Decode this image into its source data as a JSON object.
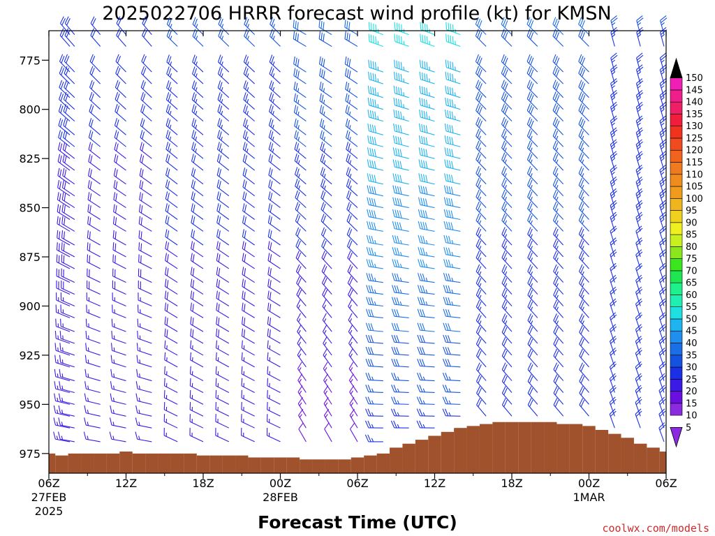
{
  "chart_data": {
    "type": "wind-barb-profile",
    "title": "2025022706 HRRR forecast wind profile (kt) for KMSN",
    "xlabel": "Forecast Time (UTC)",
    "credit": "coolwx.com/models",
    "ylim": [
      760,
      985
    ],
    "y_axis_reversed": true,
    "y_ticks": [
      775,
      800,
      825,
      850,
      875,
      900,
      925,
      950,
      975
    ],
    "x_range_hours": [
      0,
      48
    ],
    "x_ticks": [
      {
        "hour": 0,
        "label": "06Z",
        "date": "27FEB",
        "year": "2025"
      },
      {
        "hour": 6,
        "label": "12Z",
        "date": "",
        "year": ""
      },
      {
        "hour": 12,
        "label": "18Z",
        "date": "",
        "year": ""
      },
      {
        "hour": 18,
        "label": "00Z",
        "date": "28FEB",
        "year": ""
      },
      {
        "hour": 24,
        "label": "06Z",
        "date": "",
        "year": ""
      },
      {
        "hour": 30,
        "label": "12Z",
        "date": "",
        "year": ""
      },
      {
        "hour": 36,
        "label": "18Z",
        "date": "",
        "year": ""
      },
      {
        "hour": 42,
        "label": "00Z",
        "date": "1MAR",
        "year": ""
      },
      {
        "hour": 48,
        "label": "06Z",
        "date": "",
        "year": ""
      }
    ],
    "colorbar": {
      "levels": [
        5,
        10,
        15,
        20,
        25,
        30,
        35,
        40,
        45,
        50,
        55,
        60,
        65,
        70,
        75,
        80,
        85,
        90,
        95,
        100,
        105,
        110,
        115,
        120,
        125,
        130,
        135,
        140,
        145,
        150
      ],
      "colors": [
        "#8a2be2",
        "#6a0fe0",
        "#3b1ae6",
        "#1a30e6",
        "#1452e0",
        "#1a6ee6",
        "#1e8ef0",
        "#1eb4f0",
        "#1ee0e0",
        "#1ef0b4",
        "#1ef08c",
        "#1ee650",
        "#3ce61e",
        "#8ce61e",
        "#c8f01e",
        "#f0f01e",
        "#f0d21e",
        "#f0b41e",
        "#f09b1e",
        "#f08c1e",
        "#f07a1e",
        "#f0641e",
        "#f04b1e",
        "#f0321e",
        "#f01e3c",
        "#f01e64",
        "#f01e8c",
        "#f01eb4",
        "#f01ed7",
        "#000000"
      ]
    },
    "surface_pressure_hpa": [
      [
        0,
        975
      ],
      [
        1,
        976
      ],
      [
        2,
        975
      ],
      [
        3,
        975
      ],
      [
        4,
        975
      ],
      [
        5,
        975
      ],
      [
        6,
        974
      ],
      [
        7,
        975
      ],
      [
        8,
        975
      ],
      [
        9,
        975
      ],
      [
        10,
        975
      ],
      [
        11,
        975
      ],
      [
        12,
        976
      ],
      [
        13,
        976
      ],
      [
        14,
        976
      ],
      [
        15,
        976
      ],
      [
        16,
        977
      ],
      [
        17,
        977
      ],
      [
        18,
        977
      ],
      [
        19,
        977
      ],
      [
        20,
        978
      ],
      [
        21,
        978
      ],
      [
        22,
        978
      ],
      [
        23,
        978
      ],
      [
        24,
        977
      ],
      [
        25,
        976
      ],
      [
        26,
        975
      ],
      [
        27,
        972
      ],
      [
        28,
        970
      ],
      [
        29,
        968
      ],
      [
        30,
        966
      ],
      [
        31,
        964
      ],
      [
        32,
        962
      ],
      [
        33,
        961
      ],
      [
        34,
        960
      ],
      [
        35,
        959
      ],
      [
        36,
        959
      ],
      [
        37,
        959
      ],
      [
        38,
        959
      ],
      [
        39,
        959
      ],
      [
        40,
        960
      ],
      [
        41,
        960
      ],
      [
        42,
        961
      ],
      [
        43,
        963
      ],
      [
        44,
        965
      ],
      [
        45,
        967
      ],
      [
        46,
        970
      ],
      [
        47,
        972
      ],
      [
        48,
        974
      ]
    ],
    "barb_levels_hpa": [
      762,
      768,
      781,
      787,
      794,
      800,
      806,
      813,
      819,
      825,
      831,
      838,
      844,
      850,
      856,
      862,
      869,
      875,
      881,
      888,
      894,
      900,
      906,
      913,
      919,
      925,
      931,
      938,
      944,
      950,
      956,
      962,
      969
    ],
    "wind_regimes": [
      {
        "hours": [
          0,
          8
        ],
        "speed_upper_kt": 22,
        "speed_lower_kt": 15,
        "dir_upper_deg": 320,
        "dir_lower_deg": 280
      },
      {
        "hours": [
          9,
          19
        ],
        "speed_upper_kt": 26,
        "speed_lower_kt": 15,
        "dir_upper_deg": 315,
        "dir_lower_deg": 295
      },
      {
        "hours": [
          20,
          25
        ],
        "speed_upper_kt": 30,
        "speed_lower_kt": 12,
        "dir_upper_deg": 300,
        "dir_lower_deg": 330
      },
      {
        "hours": [
          26,
          33
        ],
        "speed_upper_kt": 50,
        "speed_lower_kt": 25,
        "dir_upper_deg": 290,
        "dir_lower_deg": 270
      },
      {
        "hours": [
          34,
          42
        ],
        "speed_upper_kt": 30,
        "speed_lower_kt": 20,
        "dir_upper_deg": 315,
        "dir_lower_deg": 320
      },
      {
        "hours": [
          43,
          48
        ],
        "speed_upper_kt": 25,
        "speed_lower_kt": 20,
        "dir_upper_deg": 345,
        "dir_lower_deg": 340
      }
    ]
  }
}
